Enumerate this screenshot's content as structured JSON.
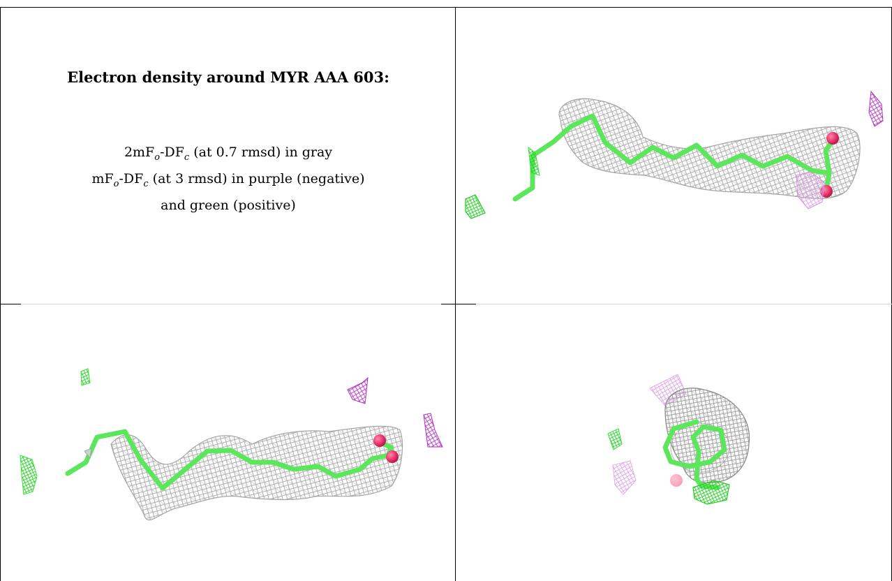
{
  "caption": {
    "title": "Electron density around MYR AAA 603:",
    "line1_prefix": "2mF",
    "line1_sub1": "o",
    "line1_mid": "-DF",
    "line1_sub2": "c",
    "line1_suffix": " (at 0.7 rmsd) in gray",
    "line2_prefix": "mF",
    "line2_sub1": "o",
    "line2_mid": "-DF",
    "line2_sub2": "c",
    "line2_suffix": " (at 3 rmsd) in purple (negative)",
    "line3": "and green (positive)"
  },
  "colors": {
    "ligand": "#5ce65c",
    "oxygen": "#e8336b",
    "mesh_gray": "#9a9a9a",
    "mesh_purple": "#b030c0",
    "mesh_purple_light": "#e0a6e8",
    "mesh_green": "#33e033"
  },
  "views": [
    "side-view",
    "front-view",
    "end-on-view"
  ]
}
